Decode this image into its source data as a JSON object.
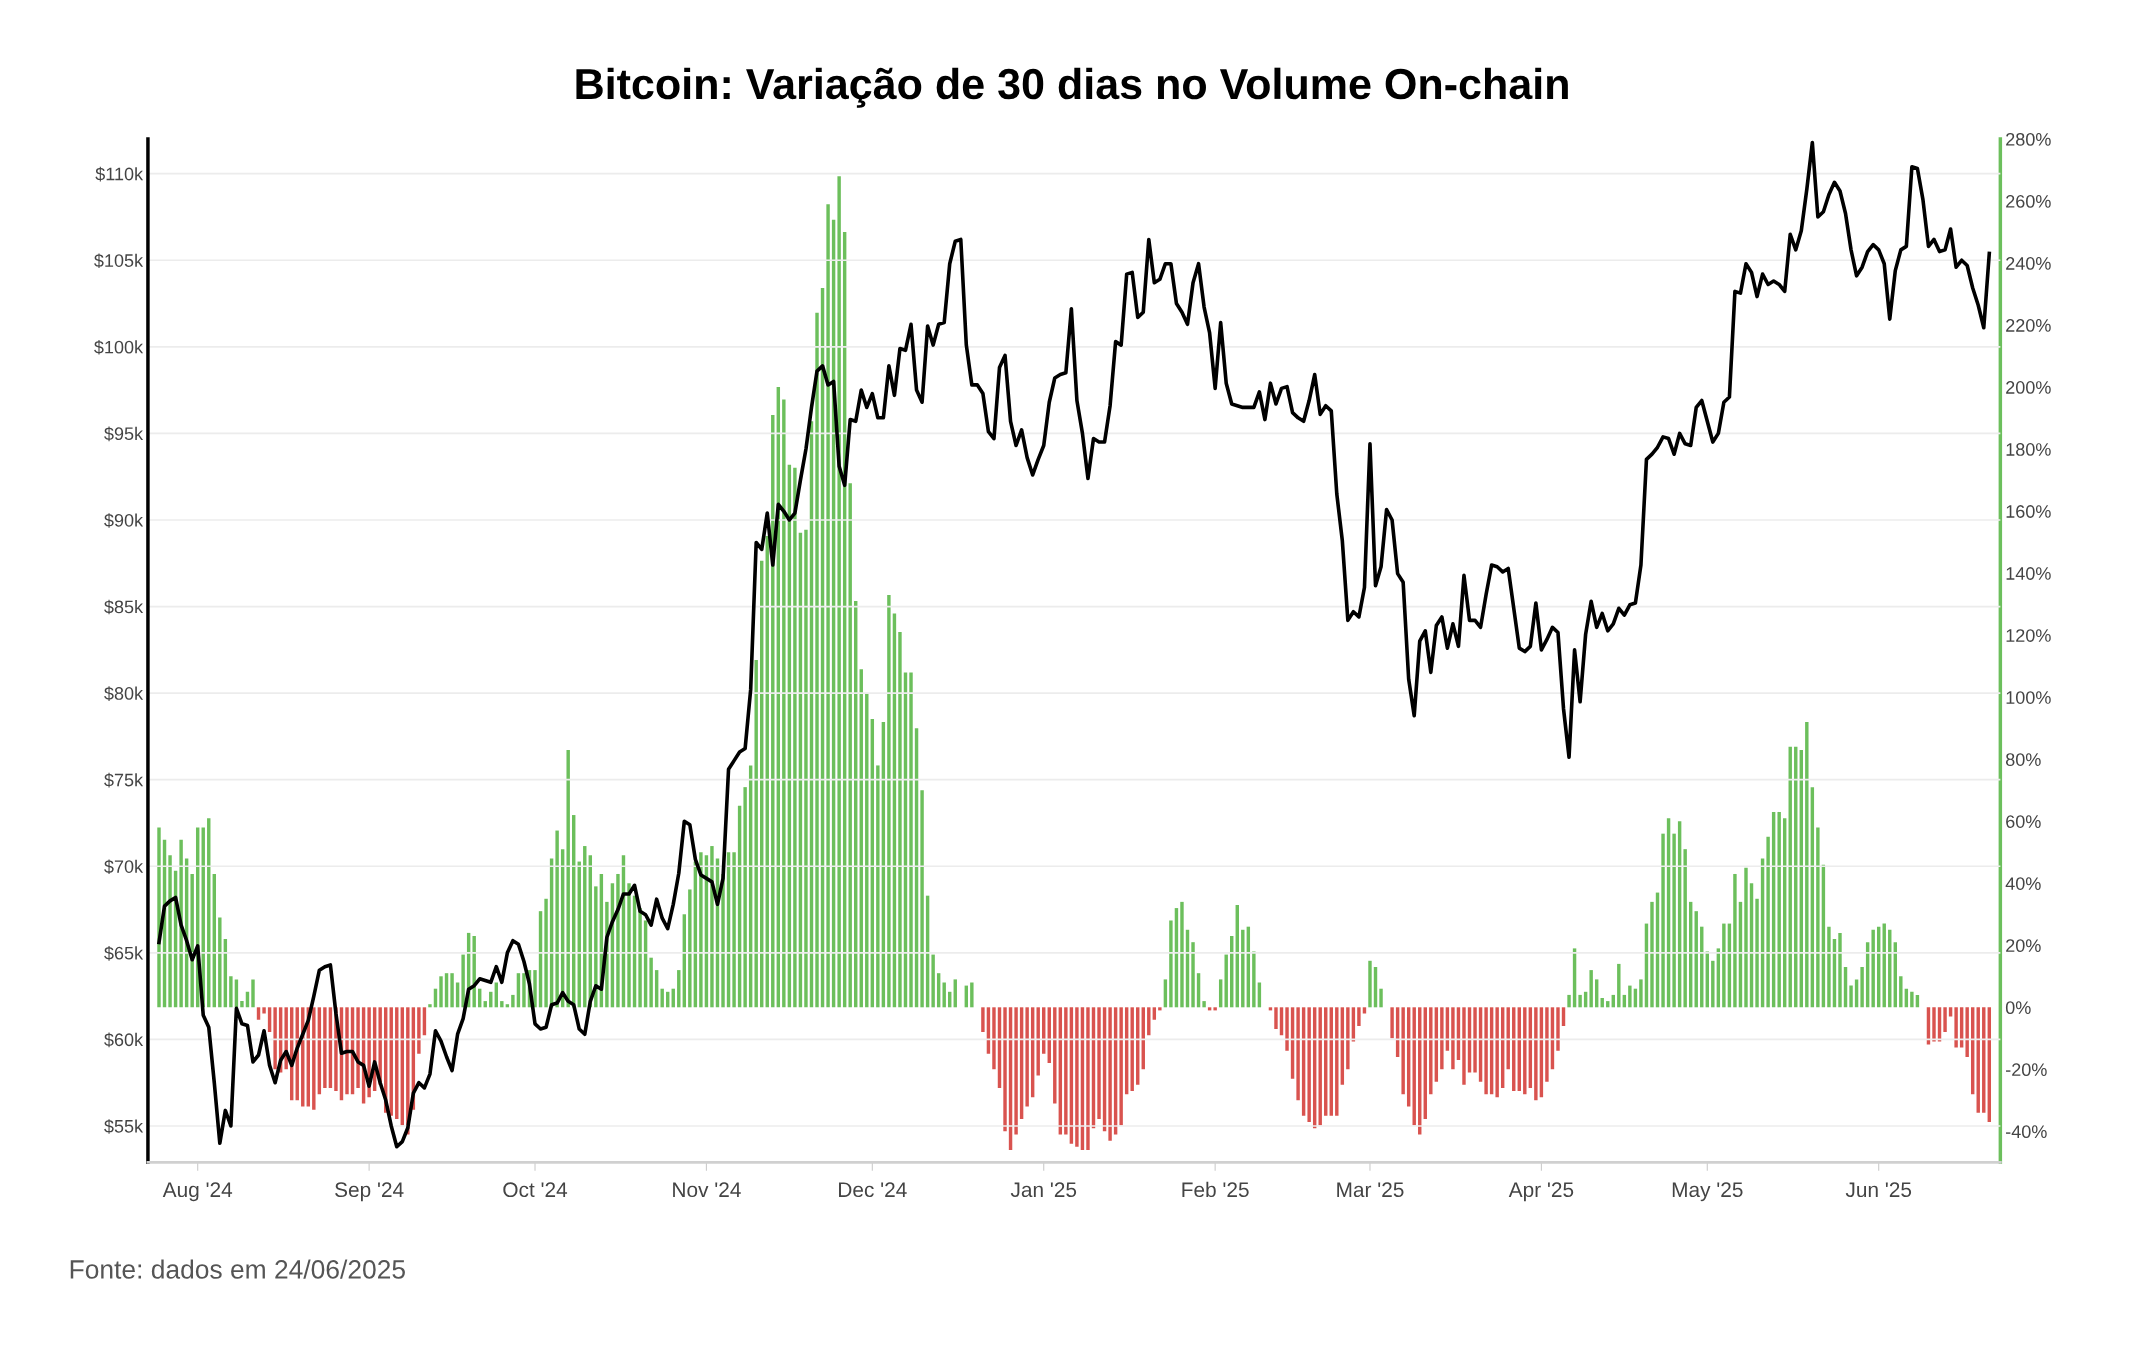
{
  "chart_data": {
    "type": "bar",
    "title": "Bitcoin: Variação de 30 dias no Volume On-chain",
    "annotations": [
      "Fonte: dados em 24/06/2025"
    ],
    "x": [
      "2024-07-25",
      "2024-07-26",
      "2024-07-27",
      "2024-07-28",
      "2024-07-29",
      "2024-07-30",
      "2024-07-31",
      "2024-08-01",
      "2024-08-02",
      "2024-08-03",
      "2024-08-04",
      "2024-08-05",
      "2024-08-06",
      "2024-08-07",
      "2024-08-08",
      "2024-08-09",
      "2024-08-10",
      "2024-08-11",
      "2024-08-12",
      "2024-08-13",
      "2024-08-14",
      "2024-08-15",
      "2024-08-16",
      "2024-08-17",
      "2024-08-18",
      "2024-08-19",
      "2024-08-20",
      "2024-08-21",
      "2024-08-22",
      "2024-08-23",
      "2024-08-24",
      "2024-08-25",
      "2024-08-26",
      "2024-08-27",
      "2024-08-28",
      "2024-08-29",
      "2024-08-30",
      "2024-08-31",
      "2024-09-01",
      "2024-09-02",
      "2024-09-03",
      "2024-09-04",
      "2024-09-05",
      "2024-09-06",
      "2024-09-07",
      "2024-09-08",
      "2024-09-09",
      "2024-09-10",
      "2024-09-11",
      "2024-09-12",
      "2024-09-13",
      "2024-09-14",
      "2024-09-15",
      "2024-09-16",
      "2024-09-17",
      "2024-09-18",
      "2024-09-19",
      "2024-09-20",
      "2024-09-21",
      "2024-09-22",
      "2024-09-23",
      "2024-09-24",
      "2024-09-25",
      "2024-09-26",
      "2024-09-27",
      "2024-09-28",
      "2024-09-29",
      "2024-09-30",
      "2024-10-01",
      "2024-10-02",
      "2024-10-03",
      "2024-10-04",
      "2024-10-05",
      "2024-10-06",
      "2024-10-07",
      "2024-10-08",
      "2024-10-09",
      "2024-10-10",
      "2024-10-11",
      "2024-10-12",
      "2024-10-13",
      "2024-10-14",
      "2024-10-15",
      "2024-10-16",
      "2024-10-17",
      "2024-10-18",
      "2024-10-19",
      "2024-10-20",
      "2024-10-21",
      "2024-10-22",
      "2024-10-23",
      "2024-10-24",
      "2024-10-25",
      "2024-10-26",
      "2024-10-27",
      "2024-10-28",
      "2024-10-29",
      "2024-10-30",
      "2024-10-31",
      "2024-11-01",
      "2024-11-02",
      "2024-11-03",
      "2024-11-04",
      "2024-11-05",
      "2024-11-06",
      "2024-11-07",
      "2024-11-08",
      "2024-11-09",
      "2024-11-10",
      "2024-11-11",
      "2024-11-12",
      "2024-11-13",
      "2024-11-14",
      "2024-11-15",
      "2024-11-16",
      "2024-11-17",
      "2024-11-18",
      "2024-11-19",
      "2024-11-20",
      "2024-11-21",
      "2024-11-22",
      "2024-11-23",
      "2024-11-24",
      "2024-11-25",
      "2024-11-26",
      "2024-11-27",
      "2024-11-28",
      "2024-11-29",
      "2024-11-30",
      "2024-12-01",
      "2024-12-02",
      "2024-12-03",
      "2024-12-04",
      "2024-12-05",
      "2024-12-06",
      "2024-12-07",
      "2024-12-08",
      "2024-12-09",
      "2024-12-10",
      "2024-12-11",
      "2024-12-12",
      "2024-12-13",
      "2024-12-14",
      "2024-12-15",
      "2024-12-16",
      "2024-12-17",
      "2024-12-18",
      "2024-12-19",
      "2024-12-20",
      "2024-12-21",
      "2024-12-22",
      "2024-12-23",
      "2024-12-24",
      "2024-12-25",
      "2024-12-26",
      "2024-12-27",
      "2024-12-28",
      "2024-12-29",
      "2024-12-30",
      "2024-12-31",
      "2025-01-01",
      "2025-01-02",
      "2025-01-03",
      "2025-01-04",
      "2025-01-05",
      "2025-01-06",
      "2025-01-07",
      "2025-01-08",
      "2025-01-09",
      "2025-01-10",
      "2025-01-11",
      "2025-01-12",
      "2025-01-13",
      "2025-01-14",
      "2025-01-15",
      "2025-01-16",
      "2025-01-17",
      "2025-01-18",
      "2025-01-19",
      "2025-01-20",
      "2025-01-21",
      "2025-01-22",
      "2025-01-23",
      "2025-01-24",
      "2025-01-25",
      "2025-01-26",
      "2025-01-27",
      "2025-01-28",
      "2025-01-29",
      "2025-01-30",
      "2025-01-31",
      "2025-02-01",
      "2025-02-02",
      "2025-02-03",
      "2025-02-04",
      "2025-02-05",
      "2025-02-06",
      "2025-02-07",
      "2025-02-08",
      "2025-02-09",
      "2025-02-10",
      "2025-02-11",
      "2025-02-12",
      "2025-02-13",
      "2025-02-14",
      "2025-02-15",
      "2025-02-16",
      "2025-02-17",
      "2025-02-18",
      "2025-02-19",
      "2025-02-20",
      "2025-02-21",
      "2025-02-22",
      "2025-02-23",
      "2025-02-24",
      "2025-02-25",
      "2025-02-26",
      "2025-02-27",
      "2025-02-28",
      "2025-03-01",
      "2025-03-02",
      "2025-03-03",
      "2025-03-04",
      "2025-03-05",
      "2025-03-06",
      "2025-03-07",
      "2025-03-08",
      "2025-03-09",
      "2025-03-10",
      "2025-03-11",
      "2025-03-12",
      "2025-03-13",
      "2025-03-14",
      "2025-03-15",
      "2025-03-16",
      "2025-03-17",
      "2025-03-18",
      "2025-03-19",
      "2025-03-20",
      "2025-03-21",
      "2025-03-22",
      "2025-03-23",
      "2025-03-24",
      "2025-03-25",
      "2025-03-26",
      "2025-03-27",
      "2025-03-28",
      "2025-03-29",
      "2025-03-30",
      "2025-03-31",
      "2025-04-01",
      "2025-04-02",
      "2025-04-03",
      "2025-04-04",
      "2025-04-05",
      "2025-04-06",
      "2025-04-07",
      "2025-04-08",
      "2025-04-09",
      "2025-04-10",
      "2025-04-11",
      "2025-04-12",
      "2025-04-13",
      "2025-04-14",
      "2025-04-15",
      "2025-04-16",
      "2025-04-17",
      "2025-04-18",
      "2025-04-19",
      "2025-04-20",
      "2025-04-21",
      "2025-04-22",
      "2025-04-23",
      "2025-04-24",
      "2025-04-25",
      "2025-04-26",
      "2025-04-27",
      "2025-04-28",
      "2025-04-29",
      "2025-04-30",
      "2025-05-01",
      "2025-05-02",
      "2025-05-03",
      "2025-05-04",
      "2025-05-05",
      "2025-05-06",
      "2025-05-07",
      "2025-05-08",
      "2025-05-09",
      "2025-05-10",
      "2025-05-11",
      "2025-05-12",
      "2025-05-13",
      "2025-05-14",
      "2025-05-15",
      "2025-05-16",
      "2025-05-17",
      "2025-05-18",
      "2025-05-19",
      "2025-05-20",
      "2025-05-21",
      "2025-05-22",
      "2025-05-23",
      "2025-05-24",
      "2025-05-25",
      "2025-05-26",
      "2025-05-27",
      "2025-05-28",
      "2025-05-29",
      "2025-05-30",
      "2025-05-31",
      "2025-06-01",
      "2025-06-02",
      "2025-06-03",
      "2025-06-04",
      "2025-06-05",
      "2025-06-06",
      "2025-06-07",
      "2025-06-08",
      "2025-06-09",
      "2025-06-10",
      "2025-06-11",
      "2025-06-12",
      "2025-06-13",
      "2025-06-14",
      "2025-06-15",
      "2025-06-16",
      "2025-06-17",
      "2025-06-18",
      "2025-06-19",
      "2025-06-20",
      "2025-06-21"
    ],
    "series": [
      {
        "axis": "y2",
        "values": [
          58,
          54,
          49,
          44,
          54,
          48,
          43,
          58,
          58,
          61,
          43,
          29,
          22,
          10,
          9,
          2,
          5,
          9,
          -4,
          -2,
          -8,
          -20,
          -21,
          -20,
          -30,
          -30,
          -32,
          -32,
          -33,
          -28,
          -26,
          -26,
          -27,
          -30,
          -28,
          -28,
          -26,
          -31,
          -29,
          -27,
          -25,
          -34,
          -35,
          -36,
          -38,
          -41,
          -33,
          -15,
          -9,
          1,
          6,
          10,
          11,
          11,
          8,
          17,
          24,
          23,
          6,
          2,
          5,
          8,
          2,
          1,
          4,
          11,
          11,
          12,
          12,
          31,
          35,
          48,
          57,
          51,
          83,
          62,
          47,
          52,
          49,
          39,
          43,
          34,
          40,
          43,
          49,
          40,
          36,
          32,
          28,
          16,
          12,
          6,
          5,
          6,
          12,
          30,
          38,
          47,
          50,
          49,
          52,
          48,
          43,
          50,
          50,
          65,
          71,
          78,
          112,
          144,
          152,
          191,
          200,
          196,
          175,
          174,
          153,
          154,
          189,
          224,
          232,
          259,
          254,
          268,
          250,
          169,
          131,
          109,
          101,
          93,
          78,
          92,
          133,
          127,
          121,
          108,
          108,
          90,
          70,
          36,
          17,
          11,
          8,
          5,
          9,
          0,
          7,
          8,
          0,
          -8,
          -15,
          -20,
          -26,
          -40,
          -46,
          -41,
          -36,
          -32,
          -29,
          -22,
          -15,
          -18,
          -31,
          -41,
          -41,
          -44,
          -45,
          -46,
          -46,
          -39,
          -36,
          -40,
          -43,
          -41,
          -38,
          -28,
          -27,
          -25,
          -20,
          -9,
          -4,
          -1,
          9,
          28,
          32,
          34,
          25,
          21,
          11,
          2,
          -1,
          -1,
          9,
          17,
          23,
          33,
          25,
          26,
          18,
          8,
          0,
          -1,
          -7,
          -9,
          -14,
          -23,
          -30,
          -35,
          -37,
          -39,
          -38,
          -35,
          -35,
          -35,
          -25,
          -20,
          -11,
          -6,
          -2,
          15,
          13,
          6,
          0,
          -10,
          -16,
          -28,
          -32,
          -38,
          -41,
          -36,
          -28,
          -24,
          -20,
          -14,
          -20,
          -17,
          -25,
          -21,
          -21,
          -24,
          -28,
          -28,
          -29,
          -26,
          -20,
          -27,
          -27,
          -28,
          -26,
          -30,
          -29,
          -24,
          -20,
          -14,
          -6,
          4,
          19,
          4,
          5,
          12,
          9,
          3,
          2,
          4,
          14,
          4,
          7,
          6,
          9,
          27,
          34,
          37,
          56,
          61,
          56,
          60,
          51,
          34,
          31,
          26,
          18,
          15,
          19,
          27,
          27,
          43,
          34,
          45,
          40,
          35,
          48,
          55,
          63,
          63,
          61,
          84,
          84,
          83,
          92,
          71,
          58,
          46,
          26,
          22,
          24,
          13,
          7,
          9,
          13,
          21,
          25,
          26,
          27,
          25,
          21,
          10,
          6,
          5,
          4,
          0,
          -12,
          -11,
          -11,
          -8,
          -3,
          -13,
          -13,
          -16,
          -28,
          -34,
          -34,
          -37
        ],
        "colors": [
          "#6cbf5c",
          "#6cbf5c",
          "#6cbf5c",
          "#6cbf5c",
          "#6cbf5c",
          "#6cbf5c",
          "#6cbf5c",
          "#6cbf5c",
          "#6cbf5c",
          "#6cbf5c",
          "#6cbf5c",
          "#6cbf5c",
          "#6cbf5c",
          "#6cbf5c",
          "#6cbf5c",
          "#6cbf5c",
          "#6cbf5c",
          "#6cbf5c",
          "#d9534f",
          "#d9534f",
          "#d9534f",
          "#d9534f",
          "#d9534f",
          "#d9534f",
          "#d9534f",
          "#d9534f",
          "#d9534f",
          "#d9534f",
          "#d9534f",
          "#d9534f",
          "#d9534f",
          "#d9534f",
          "#d9534f",
          "#d9534f",
          "#d9534f",
          "#d9534f",
          "#d9534f",
          "#d9534f",
          "#d9534f",
          "#d9534f",
          "#d9534f",
          "#d9534f",
          "#d9534f",
          "#d9534f",
          "#d9534f",
          "#d9534f",
          "#d9534f",
          "#d9534f",
          "#d9534f",
          "#6cbf5c",
          "#6cbf5c",
          "#6cbf5c",
          "#6cbf5c",
          "#6cbf5c",
          "#6cbf5c",
          "#6cbf5c",
          "#6cbf5c",
          "#6cbf5c",
          "#6cbf5c",
          "#6cbf5c",
          "#6cbf5c",
          "#6cbf5c",
          "#6cbf5c",
          "#6cbf5c",
          "#6cbf5c",
          "#6cbf5c",
          "#6cbf5c",
          "#6cbf5c",
          "#6cbf5c",
          "#6cbf5c",
          "#6cbf5c",
          "#6cbf5c",
          "#6cbf5c",
          "#6cbf5c",
          "#6cbf5c",
          "#6cbf5c",
          "#6cbf5c",
          "#6cbf5c",
          "#6cbf5c",
          "#6cbf5c",
          "#6cbf5c",
          "#6cbf5c",
          "#6cbf5c",
          "#6cbf5c",
          "#6cbf5c",
          "#6cbf5c",
          "#6cbf5c",
          "#6cbf5c",
          "#6cbf5c",
          "#6cbf5c",
          "#6cbf5c",
          "#6cbf5c",
          "#6cbf5c",
          "#6cbf5c",
          "#6cbf5c",
          "#6cbf5c",
          "#6cbf5c",
          "#6cbf5c",
          "#6cbf5c",
          "#6cbf5c",
          "#6cbf5c",
          "#6cbf5c",
          "#6cbf5c",
          "#6cbf5c",
          "#6cbf5c",
          "#6cbf5c",
          "#6cbf5c",
          "#6cbf5c",
          "#6cbf5c",
          "#6cbf5c",
          "#6cbf5c",
          "#6cbf5c",
          "#6cbf5c",
          "#6cbf5c",
          "#6cbf5c",
          "#6cbf5c",
          "#6cbf5c",
          "#6cbf5c",
          "#6cbf5c",
          "#6cbf5c",
          "#6cbf5c",
          "#6cbf5c",
          "#6cbf5c",
          "#6cbf5c",
          "#6cbf5c",
          "#6cbf5c",
          "#6cbf5c",
          "#6cbf5c",
          "#6cbf5c",
          "#6cbf5c",
          "#6cbf5c",
          "#6cbf5c",
          "#6cbf5c",
          "#6cbf5c",
          "#6cbf5c",
          "#6cbf5c",
          "#6cbf5c",
          "#6cbf5c",
          "#6cbf5c",
          "#6cbf5c",
          "#6cbf5c",
          "#6cbf5c",
          "#6cbf5c",
          "#6cbf5c",
          "#6cbf5c",
          "#6cbf5c",
          "#6cbf5c",
          "#6cbf5c",
          "#6cbf5c",
          "#d9534f",
          "#d9534f",
          "#d9534f",
          "#d9534f",
          "#d9534f",
          "#d9534f",
          "#d9534f",
          "#d9534f",
          "#d9534f",
          "#d9534f",
          "#d9534f",
          "#d9534f",
          "#d9534f",
          "#d9534f",
          "#d9534f",
          "#d9534f",
          "#d9534f",
          "#d9534f",
          "#d9534f",
          "#d9534f",
          "#d9534f",
          "#d9534f",
          "#d9534f",
          "#d9534f",
          "#d9534f",
          "#d9534f",
          "#d9534f",
          "#d9534f",
          "#d9534f",
          "#d9534f",
          "#d9534f",
          "#d9534f",
          "#d9534f",
          "#6cbf5c",
          "#6cbf5c",
          "#6cbf5c",
          "#6cbf5c",
          "#6cbf5c",
          "#6cbf5c",
          "#6cbf5c",
          "#6cbf5c",
          "#d9534f",
          "#d9534f",
          "#6cbf5c",
          "#6cbf5c",
          "#6cbf5c",
          "#6cbf5c",
          "#6cbf5c",
          "#6cbf5c",
          "#6cbf5c",
          "#6cbf5c",
          "#6cbf5c",
          "#d9534f",
          "#d9534f",
          "#d9534f",
          "#d9534f",
          "#d9534f",
          "#d9534f",
          "#d9534f",
          "#d9534f",
          "#d9534f",
          "#d9534f",
          "#d9534f",
          "#d9534f",
          "#d9534f",
          "#d9534f",
          "#d9534f",
          "#d9534f",
          "#d9534f",
          "#d9534f",
          "#6cbf5c",
          "#6cbf5c",
          "#6cbf5c",
          "#6cbf5c",
          "#d9534f",
          "#d9534f",
          "#d9534f",
          "#d9534f",
          "#d9534f",
          "#d9534f",
          "#d9534f",
          "#d9534f",
          "#d9534f",
          "#d9534f",
          "#d9534f",
          "#d9534f",
          "#d9534f",
          "#d9534f",
          "#d9534f",
          "#d9534f",
          "#d9534f",
          "#d9534f",
          "#d9534f",
          "#d9534f",
          "#d9534f",
          "#d9534f",
          "#d9534f",
          "#d9534f",
          "#d9534f",
          "#d9534f",
          "#d9534f",
          "#d9534f",
          "#d9534f",
          "#d9534f",
          "#d9534f",
          "#d9534f",
          "#6cbf5c",
          "#6cbf5c",
          "#6cbf5c",
          "#6cbf5c",
          "#6cbf5c",
          "#6cbf5c",
          "#6cbf5c",
          "#6cbf5c",
          "#6cbf5c",
          "#6cbf5c",
          "#6cbf5c",
          "#6cbf5c",
          "#6cbf5c",
          "#6cbf5c",
          "#6cbf5c",
          "#6cbf5c",
          "#6cbf5c",
          "#6cbf5c",
          "#6cbf5c",
          "#6cbf5c",
          "#6cbf5c",
          "#6cbf5c",
          "#6cbf5c",
          "#6cbf5c",
          "#6cbf5c",
          "#6cbf5c",
          "#6cbf5c",
          "#6cbf5c",
          "#6cbf5c",
          "#6cbf5c",
          "#6cbf5c",
          "#6cbf5c",
          "#6cbf5c",
          "#6cbf5c",
          "#6cbf5c",
          "#6cbf5c",
          "#6cbf5c",
          "#6cbf5c",
          "#6cbf5c",
          "#6cbf5c",
          "#6cbf5c",
          "#6cbf5c",
          "#6cbf5c",
          "#6cbf5c",
          "#6cbf5c",
          "#6cbf5c",
          "#6cbf5c",
          "#6cbf5c",
          "#6cbf5c",
          "#6cbf5c",
          "#6cbf5c",
          "#6cbf5c",
          "#6cbf5c",
          "#6cbf5c",
          "#6cbf5c",
          "#6cbf5c",
          "#6cbf5c",
          "#6cbf5c",
          "#6cbf5c",
          "#6cbf5c",
          "#6cbf5c",
          "#6cbf5c",
          "#6cbf5c",
          "#6cbf5c",
          "#6cbf5c",
          "#d9534f",
          "#d9534f",
          "#d9534f",
          "#d9534f",
          "#d9534f",
          "#d9534f",
          "#d9534f",
          "#d9534f",
          "#d9534f",
          "#d9534f",
          "#d9534f",
          "#d9534f"
        ]
      },
      {
        "type": "line",
        "color": "#000000",
        "values": [
          65.6,
          67.7,
          68.0,
          68.2,
          66.6,
          65.7,
          64.6,
          65.4,
          61.4,
          60.7,
          57.5,
          54.0,
          55.9,
          55.0,
          61.8,
          60.9,
          60.8,
          58.7,
          59.1,
          60.5,
          58.5,
          57.5,
          58.8,
          59.3,
          58.5,
          59.5,
          60.3,
          61.1,
          62.5,
          64.0,
          64.2,
          64.3,
          61.5,
          59.2,
          59.3,
          59.3,
          58.7,
          58.5,
          57.3,
          58.7,
          57.5,
          56.5,
          55.0,
          53.8,
          54.1,
          54.9,
          56.9,
          57.5,
          57.2,
          58.0,
          60.5,
          59.9,
          59.0,
          58.2,
          60.3,
          61.2,
          62.9,
          63.1,
          63.5,
          63.4,
          63.3,
          64.2,
          63.3,
          65.0,
          65.7,
          65.5,
          64.5,
          63.2,
          60.9,
          60.6,
          60.7,
          62.0,
          62.1,
          62.7,
          62.2,
          62.0,
          60.6,
          60.3,
          62.2,
          63.1,
          62.9,
          65.9,
          66.8,
          67.5,
          68.4,
          68.4,
          68.9,
          67.4,
          67.2,
          66.6,
          68.1,
          67.0,
          66.4,
          67.8,
          69.6,
          72.6,
          72.4,
          70.4,
          69.5,
          69.3,
          69.1,
          67.8,
          69.3,
          75.6,
          76.1,
          76.6,
          76.8,
          80.2,
          88.7,
          88.3,
          90.4,
          87.4,
          90.9,
          90.5,
          90.0,
          90.4,
          92.3,
          94.1,
          96.5,
          98.6,
          98.9,
          97.8,
          98.0,
          93.1,
          92.0,
          95.8,
          95.7,
          97.5,
          96.5,
          97.3,
          95.9,
          95.9,
          98.9,
          97.2,
          99.9,
          99.8,
          101.3,
          97.5,
          96.8,
          101.2,
          100.1,
          101.3,
          101.4,
          104.8,
          106.1,
          106.2,
          100.1,
          97.8,
          97.8,
          97.3,
          95.1,
          94.7,
          98.8,
          99.5,
          95.7,
          94.3,
          95.2,
          93.6,
          92.6,
          93.5,
          94.3,
          96.8,
          98.2,
          98.4,
          98.5,
          102.2,
          96.9,
          95.0,
          92.4,
          94.7,
          94.5,
          94.5,
          96.6,
          100.3,
          100.1,
          104.2,
          104.3,
          101.7,
          102.0,
          106.2,
          103.7,
          103.9,
          104.8,
          104.8,
          102.5,
          102.0,
          101.3,
          103.7,
          104.8,
          102.3,
          100.8,
          97.6,
          101.4,
          97.9,
          96.7,
          96.6,
          96.5,
          96.5,
          96.5,
          97.4,
          95.8,
          97.9,
          96.7,
          97.6,
          97.7,
          96.2,
          95.9,
          95.7,
          96.9,
          98.4,
          96.1,
          96.6,
          96.3,
          91.5,
          88.8,
          84.2,
          84.7,
          84.4,
          86.1,
          94.4,
          86.2,
          87.3,
          90.6,
          90.0,
          86.9,
          86.4,
          80.8,
          78.7,
          83.0,
          83.6,
          81.2,
          83.9,
          84.4,
          82.6,
          84.0,
          82.7,
          86.8,
          84.2,
          84.2,
          83.8,
          85.7,
          87.4,
          87.3,
          87.0,
          87.2,
          84.9,
          82.6,
          82.4,
          82.7,
          85.2,
          82.5,
          83.1,
          83.8,
          83.5,
          79.1,
          76.3,
          82.5,
          79.5,
          83.4,
          85.3,
          83.8,
          84.6,
          83.6,
          84.0,
          84.9,
          84.5,
          85.1,
          85.2,
          87.4,
          93.5,
          93.8,
          94.2,
          94.8,
          94.7,
          93.8,
          95.0,
          94.4,
          94.3,
          96.5,
          96.9,
          95.7,
          94.5,
          95.0,
          96.8,
          97.1,
          103.2,
          103.1,
          104.8,
          104.3,
          102.9,
          104.2,
          103.6,
          103.8,
          103.6,
          103.2,
          106.5,
          105.6,
          106.7,
          109.1,
          111.8,
          107.5,
          107.8,
          108.8,
          109.5,
          109.0,
          107.7,
          105.6,
          104.1,
          104.6,
          105.5,
          105.9,
          105.6,
          104.8,
          101.6,
          104.4,
          105.6,
          105.8,
          110.4,
          110.3,
          108.5,
          105.8,
          106.2,
          105.5,
          105.6,
          106.8,
          104.6,
          105.0,
          104.7,
          103.4,
          102.4,
          101.1,
          105.4
        ]
      }
    ],
    "xlim": [
      "2024-07-23",
      "2025-06-23"
    ],
    "xticks": [
      {
        "value": "2024-08-01",
        "label": "Aug '24"
      },
      {
        "value": "2024-09-01",
        "label": "Sep '24"
      },
      {
        "value": "2024-10-01",
        "label": "Oct '24"
      },
      {
        "value": "2024-11-01",
        "label": "Nov '24"
      },
      {
        "value": "2024-12-01",
        "label": "Dec '24"
      },
      {
        "value": "2025-01-01",
        "label": "Jan '25"
      },
      {
        "value": "2025-02-01",
        "label": "Feb '25"
      },
      {
        "value": "2025-03-01",
        "label": "Mar '25"
      },
      {
        "value": "2025-04-01",
        "label": "Apr '25"
      },
      {
        "value": "2025-05-01",
        "label": "May '25"
      },
      {
        "value": "2025-06-01",
        "label": "Jun '25"
      }
    ],
    "ylim": [
      52.9,
      112
    ],
    "yticks": [
      {
        "value": 55,
        "label": "$55k"
      },
      {
        "value": 60,
        "label": "$60k"
      },
      {
        "value": 65,
        "label": "$65k"
      },
      {
        "value": 70,
        "label": "$70k"
      },
      {
        "value": 75,
        "label": "$75k"
      },
      {
        "value": 80,
        "label": "$80k"
      },
      {
        "value": 85,
        "label": "$85k"
      },
      {
        "value": 90,
        "label": "$90k"
      },
      {
        "value": 95,
        "label": "$95k"
      },
      {
        "value": 100,
        "label": "$100k"
      },
      {
        "value": 105,
        "label": "$105k"
      },
      {
        "value": 110,
        "label": "$110k"
      }
    ],
    "y2lim": [
      -50,
      280
    ],
    "y2ticks": [
      {
        "value": -40,
        "label": "-40%"
      },
      {
        "value": -20,
        "label": "-20%"
      },
      {
        "value": 0,
        "label": "0%"
      },
      {
        "value": 20,
        "label": "20%"
      },
      {
        "value": 40,
        "label": "40%"
      },
      {
        "value": 60,
        "label": "60%"
      },
      {
        "value": 80,
        "label": "80%"
      },
      {
        "value": 100,
        "label": "100%"
      },
      {
        "value": 120,
        "label": "120%"
      },
      {
        "value": 140,
        "label": "140%"
      },
      {
        "value": 160,
        "label": "160%"
      },
      {
        "value": 180,
        "label": "180%"
      },
      {
        "value": 200,
        "label": "200%"
      },
      {
        "value": 220,
        "label": "220%"
      },
      {
        "value": 240,
        "label": "240%"
      },
      {
        "value": 260,
        "label": "260%"
      },
      {
        "value": 280,
        "label": "280%"
      }
    ],
    "grid": "y"
  }
}
